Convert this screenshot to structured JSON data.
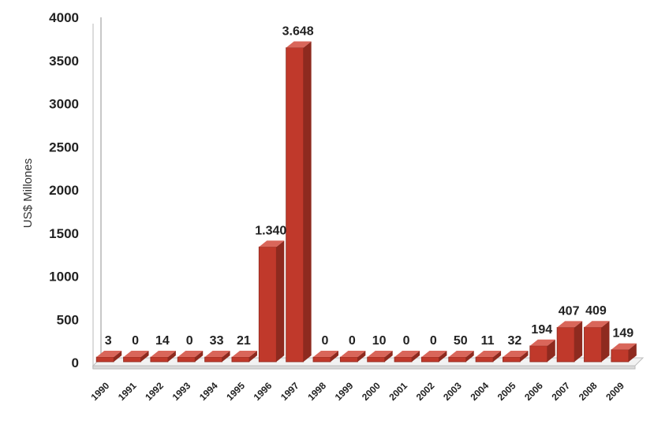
{
  "chart_data": {
    "type": "bar",
    "title": "",
    "xlabel": "",
    "ylabel": "US$ Millones",
    "ylim": [
      0,
      4000
    ],
    "yticks": [
      "0",
      "500",
      "1000",
      "1500",
      "2000",
      "2500",
      "3000",
      "3500",
      "4000"
    ],
    "categories": [
      "1990",
      "1991",
      "1992",
      "1993",
      "1994",
      "1995",
      "1996",
      "1997",
      "1998",
      "1999",
      "2000",
      "2001",
      "2002",
      "2003",
      "2004",
      "2005",
      "2006",
      "2007",
      "2008",
      "2009"
    ],
    "values": [
      3,
      0,
      14,
      0,
      33,
      21,
      1340,
      3648,
      0,
      0,
      10,
      0,
      0,
      50,
      11,
      32,
      194,
      407,
      409,
      149
    ],
    "data_labels": [
      "3",
      "0",
      "14",
      "0",
      "33",
      "21",
      "1.340",
      "3.648",
      "0",
      "0",
      "10",
      "0",
      "0",
      "50",
      "11",
      "32",
      "194",
      "407",
      "409",
      "149"
    ],
    "grid": false,
    "legend": "none",
    "bar_color": "#c0392b"
  }
}
